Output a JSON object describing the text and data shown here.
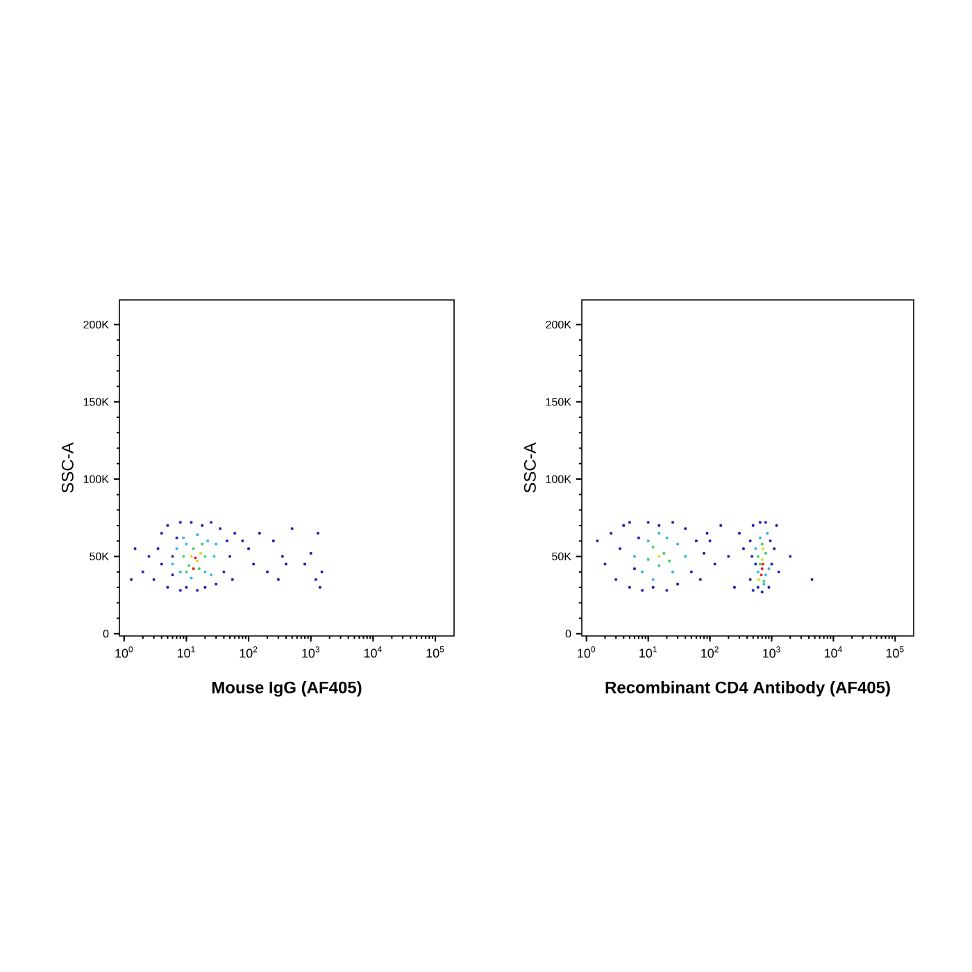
{
  "chart_data": [
    {
      "type": "scatter",
      "xlabel": "Mouse IgG (AF405)",
      "ylabel": "SSC-A",
      "log": "x",
      "marker": "square",
      "xlim": [
        0.84,
        200000
      ],
      "ylim": [
        -1500,
        216000
      ],
      "xticks": [
        {
          "value": 1,
          "label": "10$^{0}$"
        },
        {
          "value": 10,
          "label": "10$^{1}$"
        },
        {
          "value": 100,
          "label": "10$^{2}$"
        },
        {
          "value": 1000,
          "label": "10$^{3}$"
        },
        {
          "value": 10000,
          "label": "10$^{4}$"
        },
        {
          "value": 100000,
          "label": "10$^{5}$"
        }
      ],
      "yticks": [
        {
          "value": 0,
          "label": "0"
        },
        {
          "value": 50000,
          "label": "50K"
        },
        {
          "value": 100000,
          "label": "100K"
        },
        {
          "value": 150000,
          "label": "150K"
        },
        {
          "value": 200000,
          "label": "200K"
        }
      ],
      "series": [
        {
          "color": "#1a1ab4",
          "x": [
            3,
            3.5,
            4,
            4,
            5,
            5,
            6,
            6,
            7,
            8,
            8,
            10,
            12,
            15,
            18,
            20,
            25,
            30,
            35,
            40,
            45,
            50,
            55,
            60,
            2.5,
            2,
            1.5,
            1.3,
            80,
            100,
            120,
            150,
            200,
            250,
            300,
            350,
            500,
            800,
            1000,
            1300,
            1400,
            1500,
            1200,
            400
          ],
          "values": [
            35000,
            55000,
            65000,
            45000,
            30000,
            70000,
            50000,
            38000,
            62000,
            28000,
            72000,
            30000,
            72000,
            28000,
            70000,
            30000,
            72000,
            32000,
            68000,
            40000,
            60000,
            50000,
            35000,
            65000,
            50000,
            40000,
            55000,
            35000,
            60000,
            55000,
            45000,
            65000,
            40000,
            60000,
            35000,
            50000,
            68000,
            45000,
            52000,
            65000,
            30000,
            40000,
            35000,
            45000
          ]
        },
        {
          "color": "#2cb8e0",
          "x": [
            6,
            7,
            8,
            9,
            10,
            20,
            22,
            28,
            30,
            25,
            12,
            15
          ],
          "values": [
            45000,
            55000,
            40000,
            62000,
            58000,
            40000,
            60000,
            50000,
            58000,
            38000,
            36000,
            64000
          ]
        },
        {
          "color": "#3cd060",
          "x": [
            9,
            11,
            13,
            16,
            18,
            20,
            10
          ],
          "values": [
            50000,
            44000,
            55000,
            42000,
            58000,
            50000,
            40000
          ]
        },
        {
          "color": "#e0d820",
          "x": [
            12,
            15,
            17
          ],
          "values": [
            50000,
            47000,
            52000
          ]
        },
        {
          "color": "#e02020",
          "x": [
            14,
            13
          ],
          "values": [
            49000,
            42000
          ]
        }
      ]
    },
    {
      "type": "scatter",
      "xlabel": "Recombinant CD4 Antibody (AF405)",
      "ylabel": "SSC-A",
      "log": "x",
      "marker": "square",
      "xlim": [
        0.84,
        200000
      ],
      "ylim": [
        -1500,
        216000
      ],
      "xticks": [
        {
          "value": 1,
          "label": "10$^{0}$"
        },
        {
          "value": 10,
          "label": "10$^{1}$"
        },
        {
          "value": 100,
          "label": "10$^{2}$"
        },
        {
          "value": 1000,
          "label": "10$^{3}$"
        },
        {
          "value": 10000,
          "label": "10$^{4}$"
        },
        {
          "value": 100000,
          "label": "10$^{5}$"
        }
      ],
      "yticks": [
        {
          "value": 0,
          "label": "0"
        },
        {
          "value": 50000,
          "label": "50K"
        },
        {
          "value": 100000,
          "label": "100K"
        },
        {
          "value": 150000,
          "label": "150K"
        },
        {
          "value": 200000,
          "label": "200K"
        }
      ],
      "series": [
        {
          "color": "#1a1ab4",
          "x": [
            1.5,
            2,
            2.5,
            3,
            3.5,
            4,
            5,
            5,
            6,
            7,
            8,
            10,
            12,
            15,
            20,
            25,
            30,
            40,
            50,
            60,
            70,
            80,
            90,
            100,
            120,
            150,
            200,
            250,
            300,
            350,
            450,
            450,
            500,
            500,
            550,
            600,
            650,
            700,
            800,
            900,
            950,
            1000,
            1100,
            1200,
            1300,
            2000,
            4500,
            480
          ],
          "values": [
            60000,
            45000,
            65000,
            35000,
            55000,
            70000,
            30000,
            72000,
            42000,
            62000,
            28000,
            72000,
            30000,
            70000,
            28000,
            72000,
            32000,
            68000,
            40000,
            60000,
            35000,
            52000,
            65000,
            60000,
            45000,
            70000,
            50000,
            30000,
            65000,
            55000,
            35000,
            60000,
            28000,
            70000,
            45000,
            30000,
            72000,
            27000,
            72000,
            30000,
            60000,
            45000,
            55000,
            70000,
            40000,
            50000,
            35000,
            50000
          ]
        },
        {
          "color": "#2cb8e0",
          "x": [
            6,
            8,
            10,
            12,
            15,
            25,
            30,
            40,
            20,
            550,
            600,
            650,
            750,
            850,
            900,
            800
          ],
          "values": [
            50000,
            40000,
            60000,
            35000,
            65000,
            40000,
            58000,
            50000,
            62000,
            55000,
            40000,
            62000,
            32000,
            65000,
            42000,
            38000
          ]
        },
        {
          "color": "#3cd060",
          "x": [
            10,
            12,
            15,
            18,
            22,
            600,
            650,
            700,
            800,
            750
          ],
          "values": [
            48000,
            56000,
            44000,
            52000,
            47000,
            50000,
            45000,
            58000,
            52000,
            34000
          ]
        },
        {
          "color": "#e0d820",
          "x": [
            15,
            700,
            620,
            720
          ],
          "values": [
            50000,
            48000,
            35000,
            55000
          ]
        },
        {
          "color": "#e02020",
          "x": [
            700,
            680,
            720
          ],
          "values": [
            42000,
            38000,
            45000
          ]
        }
      ]
    }
  ]
}
